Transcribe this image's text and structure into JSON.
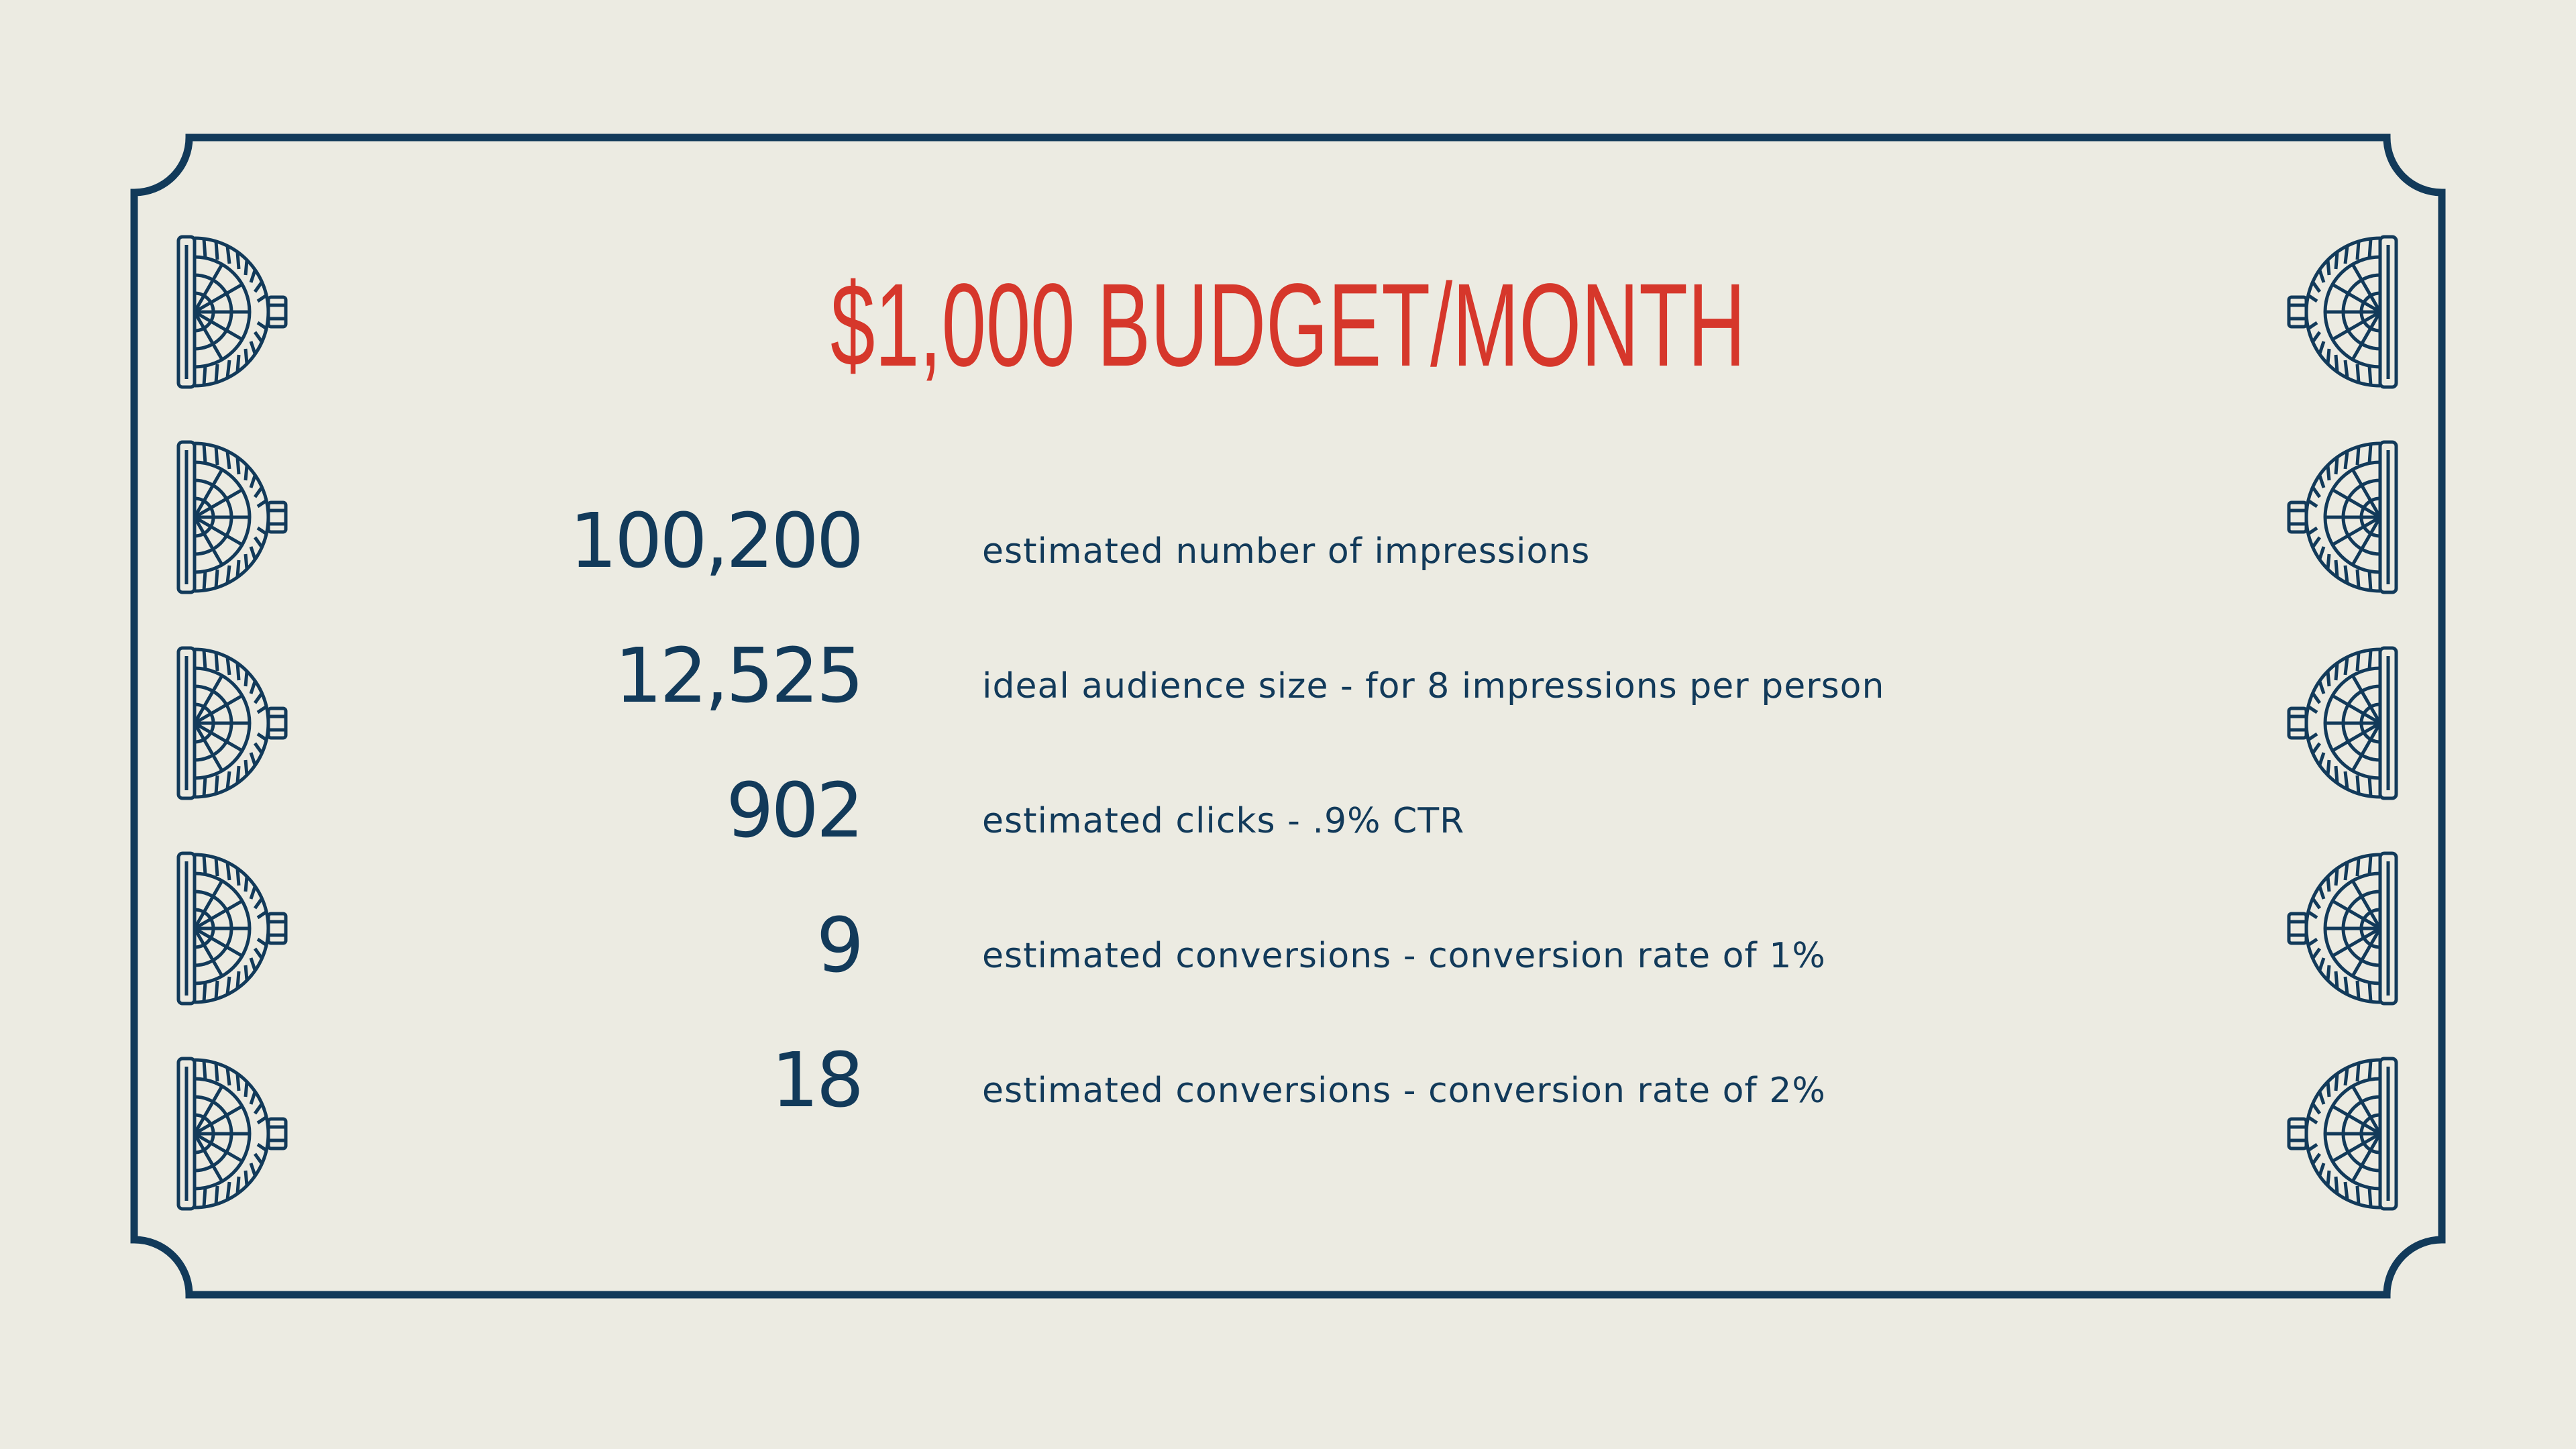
{
  "title": "$1,000 BUDGET/MONTH",
  "rows": [
    {
      "value": "100,200",
      "label": "estimated number of impressions"
    },
    {
      "value": "12,525",
      "label": "ideal audience size - for 8 impressions per person"
    },
    {
      "value": "902",
      "label": "estimated clicks - .9% CTR"
    },
    {
      "value": "9",
      "label": "estimated conversions - conversion rate of 1%"
    },
    {
      "value": "18",
      "label": "estimated conversions - conversion rate of 2%"
    }
  ]
}
